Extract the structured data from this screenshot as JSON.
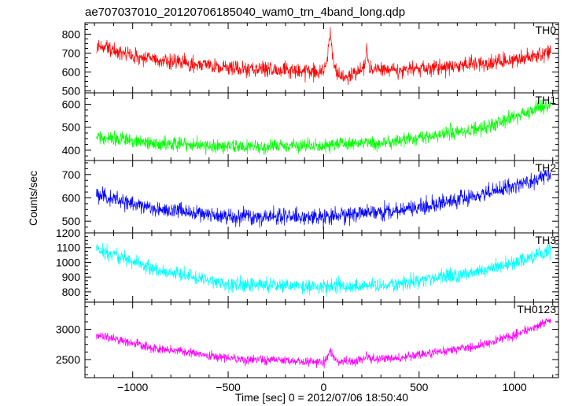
{
  "chart_data": {
    "type": "line",
    "title": "ae707037010_20120706185040_wam0_trn_4band_long.qdp",
    "xlabel": "Time [sec] 0 = 2012/07/06 18:50:40",
    "ylabel": "Counts/sec",
    "xlim": [
      -1250,
      1230
    ],
    "x_ticks": [
      -1000,
      -500,
      0,
      500,
      1000
    ],
    "x_tick_labels": [
      "−1000",
      "−500",
      "0",
      "500",
      "1000"
    ],
    "x_data_range": [
      -1190,
      1190
    ],
    "panels": [
      {
        "name": "TH0",
        "color": "#ff0000",
        "ylim": [
          490,
          860
        ],
        "y_ticks": [
          500,
          600,
          700,
          800
        ],
        "y_tick_labels": [
          "500",
          "600",
          "700",
          "800"
        ],
        "baseline": [
          [
            -1190,
            740
          ],
          [
            -1000,
            685
          ],
          [
            -700,
            640
          ],
          [
            -400,
            615
          ],
          [
            0,
            600
          ],
          [
            400,
            615
          ],
          [
            700,
            630
          ],
          [
            1000,
            665
          ],
          [
            1190,
            705
          ]
        ],
        "noise": 30,
        "peaks": [
          {
            "x": 35,
            "height": 230,
            "width": 14
          },
          {
            "x": 225,
            "height": 110,
            "width": 9
          }
        ],
        "dips": [
          {
            "x": 105,
            "depth": 40,
            "width": 50
          }
        ]
      },
      {
        "name": "TH1",
        "color": "#00ff00",
        "ylim": [
          355,
          650
        ],
        "y_ticks": [
          400,
          500,
          600
        ],
        "y_tick_labels": [
          "400",
          "500",
          "600"
        ],
        "baseline": [
          [
            -1190,
            460
          ],
          [
            -900,
            430
          ],
          [
            -500,
            415
          ],
          [
            0,
            420
          ],
          [
            400,
            440
          ],
          [
            800,
            490
          ],
          [
            1000,
            545
          ],
          [
            1190,
            600
          ]
        ],
        "noise": 22,
        "peaks": [],
        "dips": []
      },
      {
        "name": "TH2",
        "color": "#0000ff",
        "ylim": [
          450,
          760
        ],
        "y_ticks": [
          500,
          600,
          700
        ],
        "y_tick_labels": [
          "500",
          "600",
          "700"
        ],
        "baseline": [
          [
            -1190,
            615
          ],
          [
            -900,
            555
          ],
          [
            -500,
            520
          ],
          [
            0,
            520
          ],
          [
            400,
            545
          ],
          [
            800,
            610
          ],
          [
            1000,
            650
          ],
          [
            1190,
            700
          ]
        ],
        "noise": 25,
        "peaks": [],
        "dips": []
      },
      {
        "name": "TH3",
        "color": "#00ffff",
        "ylim": [
          730,
          1200
        ],
        "y_ticks": [
          800,
          900,
          1000,
          1100,
          1200
        ],
        "y_tick_labels": [
          "800",
          "900",
          "1000",
          "1100",
          "1200"
        ],
        "baseline": [
          [
            -1190,
            1090
          ],
          [
            -900,
            960
          ],
          [
            -500,
            850
          ],
          [
            0,
            835
          ],
          [
            400,
            855
          ],
          [
            800,
            935
          ],
          [
            1000,
            1000
          ],
          [
            1190,
            1080
          ]
        ],
        "noise": 35,
        "peaks": [],
        "dips": []
      },
      {
        "name": "TH0123",
        "color": "#ff00ff",
        "ylim": [
          2200,
          3450
        ],
        "y_ticks": [
          2500,
          3000
        ],
        "y_tick_labels": [
          "2500",
          "3000"
        ],
        "baseline": [
          [
            -1190,
            2900
          ],
          [
            -900,
            2700
          ],
          [
            -500,
            2520
          ],
          [
            0,
            2450
          ],
          [
            400,
            2530
          ],
          [
            800,
            2720
          ],
          [
            1000,
            2900
          ],
          [
            1190,
            3150
          ]
        ],
        "noise": 55,
        "peaks": [
          {
            "x": 35,
            "height": 230,
            "width": 14
          },
          {
            "x": 225,
            "height": 100,
            "width": 9
          }
        ],
        "dips": []
      }
    ]
  }
}
